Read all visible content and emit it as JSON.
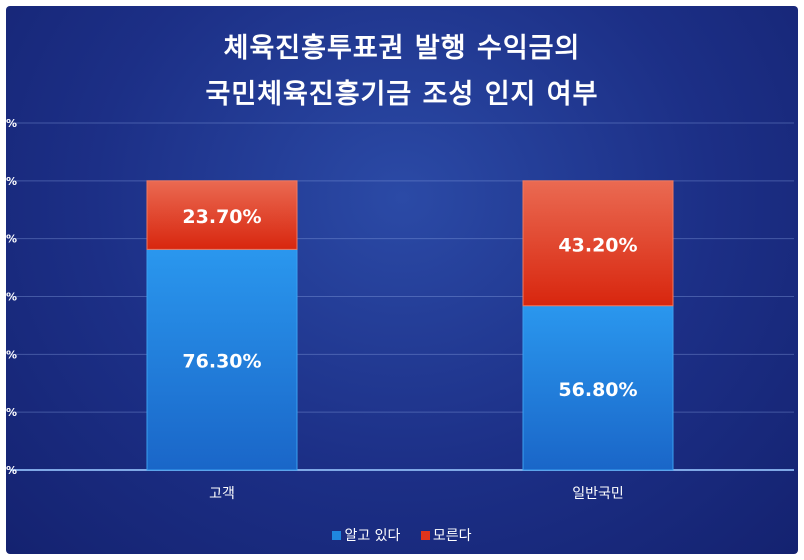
{
  "chart_data": {
    "type": "bar",
    "stacked": true,
    "title_lines": [
      "체육진흥투표권 발행 수익금의",
      "국민체육진흥기금 조성 인지 여부"
    ],
    "categories": [
      "고객",
      "일반국민"
    ],
    "series": [
      {
        "name": "알고 있다",
        "values": [
          76.3,
          56.8
        ],
        "labels": [
          "76.30%",
          "56.80%"
        ],
        "color": "#1f86e0"
      },
      {
        "name": "모른다",
        "values": [
          23.7,
          43.2
        ],
        "labels": [
          "23.70%",
          "43.20%"
        ],
        "color": "#e0341c"
      }
    ],
    "ylim": [
      0,
      120
    ],
    "ytick_labels": [
      "%",
      "%",
      "%",
      "%",
      "%",
      "%",
      "%"
    ],
    "grid": true,
    "legend_position": "bottom"
  }
}
